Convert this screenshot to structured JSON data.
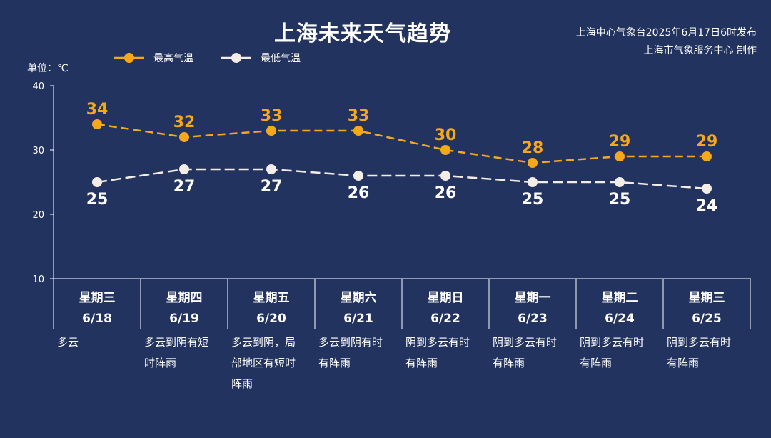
{
  "header": {
    "title": "上海未来天气趋势",
    "credit_line1": "上海中心气象台2025年6月17日6时发布",
    "credit_line2": "上海市气象服务中心 制作"
  },
  "chart_data": {
    "type": "line",
    "unit_label": "单位：℃",
    "ylim": [
      10,
      40
    ],
    "yticks": [
      10,
      20,
      30,
      40
    ],
    "grid": false,
    "legend_position": "top-left",
    "days": [
      "星期三",
      "星期四",
      "星期五",
      "星期六",
      "星期日",
      "星期一",
      "星期二",
      "星期三"
    ],
    "categories": [
      "6/18",
      "6/19",
      "6/20",
      "6/21",
      "6/22",
      "6/23",
      "6/24",
      "6/25"
    ],
    "weather": [
      [
        "多云"
      ],
      [
        "多云到阴有短",
        "时阵雨"
      ],
      [
        "多云到阴，局",
        "部地区有短时",
        "阵雨"
      ],
      [
        "多云到阴有时",
        "有阵雨"
      ],
      [
        "阴到多云有时",
        "有阵雨"
      ],
      [
        "阴到多云有时",
        "有阵雨"
      ],
      [
        "阴到多云有时",
        "有阵雨"
      ],
      [
        "阴到多云有时",
        "有阵雨"
      ]
    ],
    "series": [
      {
        "name": "最高气温",
        "color": "#f5a81c",
        "values": [
          34,
          32,
          33,
          33,
          30,
          28,
          29,
          29
        ]
      },
      {
        "name": "最低气温",
        "color": "#f4ece6",
        "values": [
          25,
          27,
          27,
          26,
          26,
          25,
          25,
          24
        ]
      }
    ]
  }
}
